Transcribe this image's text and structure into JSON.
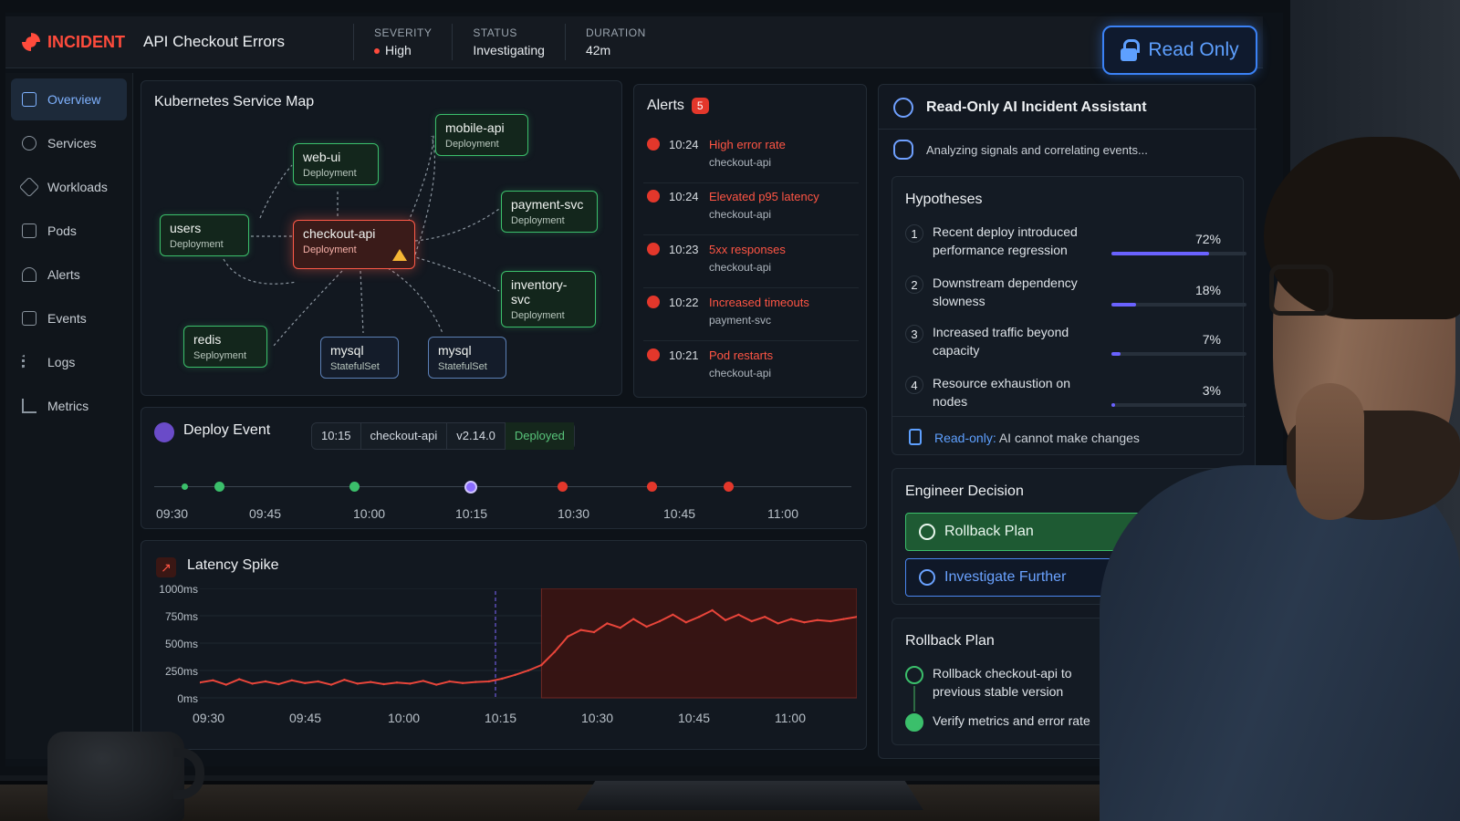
{
  "header": {
    "brand": "INCIDENT",
    "title": "API Checkout Errors",
    "severity_label": "SEVERITY",
    "severity_value": "High",
    "status_label": "STATUS",
    "status_value": "Investigating",
    "duration_label": "DURATION",
    "duration_value": "42m",
    "read_only_button": "Read Only"
  },
  "sidebar": {
    "items": [
      {
        "label": "Overview",
        "icon": "overview-icon",
        "active": true
      },
      {
        "label": "Services",
        "icon": "services-icon"
      },
      {
        "label": "Workloads",
        "icon": "workloads-icon"
      },
      {
        "label": "Pods",
        "icon": "pods-icon"
      },
      {
        "label": "Alerts",
        "icon": "alerts-icon"
      },
      {
        "label": "Events",
        "icon": "events-icon"
      },
      {
        "label": "Logs",
        "icon": "logs-icon"
      },
      {
        "label": "Metrics",
        "icon": "metrics-icon"
      }
    ]
  },
  "service_map": {
    "title": "Kubernetes Service Map",
    "nodes": [
      {
        "name": "mobile-api",
        "kind": "Deployment"
      },
      {
        "name": "web-ui",
        "kind": "Deployment"
      },
      {
        "name": "users",
        "kind": "Deployment"
      },
      {
        "name": "checkout-api",
        "kind": "Deployment"
      },
      {
        "name": "payment-svc",
        "kind": "Deployment"
      },
      {
        "name": "inventory-svc",
        "kind": "Deployment"
      },
      {
        "name": "redis",
        "kind": "Seployment"
      },
      {
        "name": "mysql",
        "kind": "StatefulSet"
      },
      {
        "name": "mysql",
        "kind": "StatefulSet"
      }
    ]
  },
  "alerts": {
    "title": "Alerts",
    "count": "5",
    "items": [
      {
        "time": "10:24",
        "name": "High error rate",
        "service": "checkout-api"
      },
      {
        "time": "10:24",
        "name": "Elevated p95 latency",
        "service": "checkout-api"
      },
      {
        "time": "10:23",
        "name": "5xx responses",
        "service": "checkout-api"
      },
      {
        "time": "10:22",
        "name": "Increased timeouts",
        "service": "payment-svc"
      },
      {
        "time": "10:21",
        "name": "Pod restarts",
        "service": "checkout-api"
      }
    ]
  },
  "deploy_event": {
    "title": "Deploy Event",
    "time": "10:15",
    "service": "checkout-api",
    "version": "v2.14.0",
    "status": "Deployed",
    "ticks": [
      "09:30",
      "09:45",
      "10:00",
      "10:15",
      "10:30",
      "10:45",
      "11:00"
    ]
  },
  "latency": {
    "title": "Latency Spike",
    "colors": {
      "line": "#e8453a",
      "highlight": "#3a1412"
    }
  },
  "chart_data": {
    "type": "line",
    "title": "Latency Spike",
    "x": [
      "09:30",
      "09:32",
      "09:34",
      "09:36",
      "09:38",
      "09:40",
      "09:42",
      "09:44",
      "09:46",
      "09:48",
      "09:50",
      "09:52",
      "09:54",
      "09:56",
      "09:58",
      "10:00",
      "10:02",
      "10:04",
      "10:06",
      "10:08",
      "10:10",
      "10:12",
      "10:14",
      "10:16",
      "10:18",
      "10:20",
      "10:22",
      "10:24",
      "10:26",
      "10:28",
      "10:30",
      "10:32",
      "10:34",
      "10:36",
      "10:38",
      "10:40",
      "10:42",
      "10:44",
      "10:46",
      "10:48",
      "10:50",
      "10:52",
      "10:54",
      "10:56",
      "10:58",
      "11:00",
      "11:02",
      "11:04",
      "11:06",
      "11:08",
      "11:10"
    ],
    "series": [
      {
        "values": [
          140,
          160,
          120,
          170,
          130,
          150,
          125,
          160,
          135,
          150,
          120,
          165,
          130,
          145,
          125,
          140,
          130,
          155,
          120,
          150,
          135,
          145,
          150,
          175,
          210,
          250,
          300,
          420,
          560,
          620,
          600,
          680,
          640,
          720,
          650,
          700,
          760,
          690,
          740,
          800,
          710,
          760,
          700,
          740,
          680,
          720,
          690,
          710,
          700,
          720,
          740
        ]
      }
    ],
    "ylim": [
      0,
      1000
    ],
    "ytick_labels": [
      "1000ms",
      "750ms",
      "500ms",
      "250ms",
      "0ms"
    ],
    "xtick_labels": [
      "09:30",
      "09:45",
      "10:00",
      "10:15",
      "10:30",
      "10:45",
      "11:00"
    ]
  },
  "assistant": {
    "title": "Read-Only AI Incident Assistant",
    "status": "Analyzing signals and correlating events...",
    "hypotheses_title": "Hypotheses",
    "hypotheses": [
      {
        "num": "1",
        "text": "Recent deploy introduced performance regression",
        "pct": "72%",
        "value": 0.72
      },
      {
        "num": "2",
        "text": "Downstream dependency slowness",
        "pct": "18%",
        "value": 0.18
      },
      {
        "num": "3",
        "text": "Increased traffic beyond capacity",
        "pct": "7%",
        "value": 0.07
      },
      {
        "num": "4",
        "text": "Resource exhaustion on nodes",
        "pct": "3%",
        "value": 0.03
      }
    ],
    "readonly_label": "Read-only:",
    "readonly_note": "AI cannot make changes",
    "decision_title": "Engineer Decision",
    "rollback_button": "Rollback Plan",
    "investigate_button": "Investigate Further",
    "plan_title": "Rollback Plan",
    "plan_steps": [
      "Rollback checkout-api to previous stable version",
      "Verify metrics and error rate"
    ]
  }
}
